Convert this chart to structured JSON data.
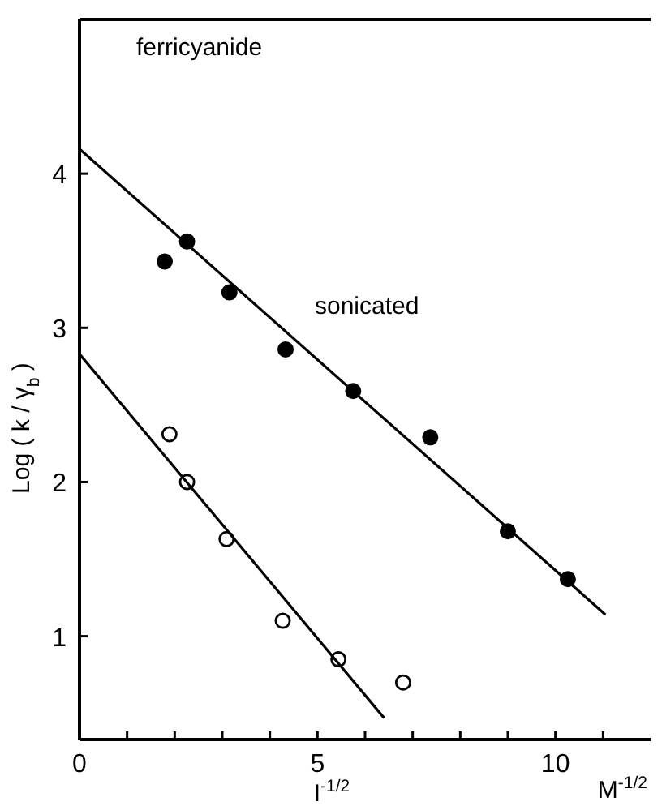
{
  "chart_data": {
    "type": "scatter",
    "xlabel": "I$^{-1/2}$",
    "ylabel": "Log ( k / γ$_{b}$ )",
    "xlim": [
      0,
      12
    ],
    "ylim": [
      0.33,
      5
    ],
    "xticks": [
      0,
      {
        "value": 1,
        "label": null
      },
      {
        "value": 2,
        "label": null
      },
      {
        "value": 3,
        "label": null
      },
      {
        "value": 4,
        "label": null
      },
      5,
      {
        "value": 6,
        "label": null
      },
      {
        "value": 7,
        "label": null
      },
      {
        "value": 8,
        "label": null
      },
      {
        "value": 9,
        "label": null
      },
      10,
      {
        "value": 11,
        "label": null
      }
    ],
    "yticks": [
      1,
      2,
      3,
      4
    ],
    "grid": false,
    "annotations": [
      {
        "text": "ferricyanide"
      },
      {
        "text": "M$^{-1/2}$"
      }
    ],
    "series": [
      {
        "name": "sonicated",
        "marker": "circle",
        "color": "#000000",
        "x": [
          1.79,
          2.26,
          3.15,
          4.33,
          5.75,
          7.37,
          9.0,
          10.26
        ],
        "values": [
          3.43,
          3.56,
          3.23,
          2.86,
          2.59,
          2.29,
          1.68,
          1.37
        ]
      },
      {
        "type": "line",
        "color": "#000000",
        "x": [
          0,
          11.05
        ],
        "values": [
          4.16,
          1.14
        ]
      },
      {
        "marker": "circle",
        "color": "#ffffff",
        "x": [
          1.89,
          2.26,
          3.09,
          4.27,
          5.44,
          6.8
        ],
        "values": [
          2.31,
          2.0,
          1.63,
          1.1,
          0.85,
          0.7
        ]
      },
      {
        "type": "line",
        "color": "#000000",
        "x": [
          0,
          6.4
        ],
        "values": [
          2.83,
          0.47
        ]
      }
    ]
  }
}
